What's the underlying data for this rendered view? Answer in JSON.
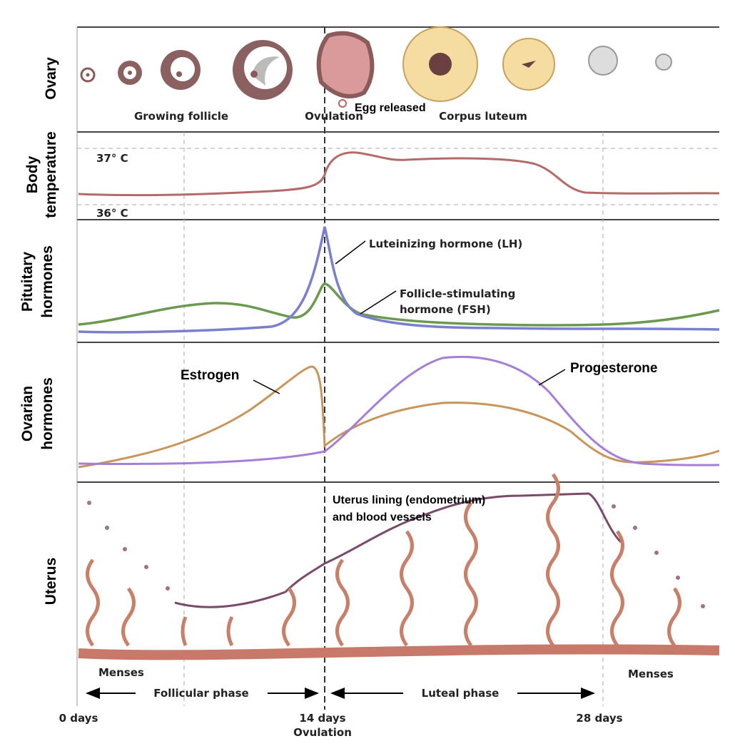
{
  "rows": {
    "ovary": [
      "Ovary"
    ],
    "temperature": [
      "Body",
      "temperature"
    ],
    "pituitary": [
      "Pituitary",
      "hormones"
    ],
    "ovarian": [
      "Ovarian",
      "hormones"
    ],
    "uterus": [
      "Uterus"
    ]
  },
  "ovary": {
    "growing": "Growing follicle",
    "ovulation": "Ovulation",
    "egg": "Egg released",
    "corpus": "Corpus luteum"
  },
  "temperature": {
    "high": "37° C",
    "low": "36° C"
  },
  "pituitary": {
    "lh": "Luteinizing hormone (LH)",
    "fsh": [
      "Follicle-stimulating",
      "hormone (FSH)"
    ]
  },
  "ovarian": {
    "estrogen": "Estrogen",
    "progesterone": "Progesterone"
  },
  "uterus": {
    "lining": [
      "Uterus lining (endometrium)",
      "and blood vessels"
    ],
    "menses_left": "Menses",
    "menses_right": "Menses",
    "follicular": "Follicular phase",
    "luteal": "Luteal phase"
  },
  "timeline": {
    "start": "0 days",
    "mid": "14 days",
    "mid_sub": "Ovulation",
    "end": "28 days"
  }
}
